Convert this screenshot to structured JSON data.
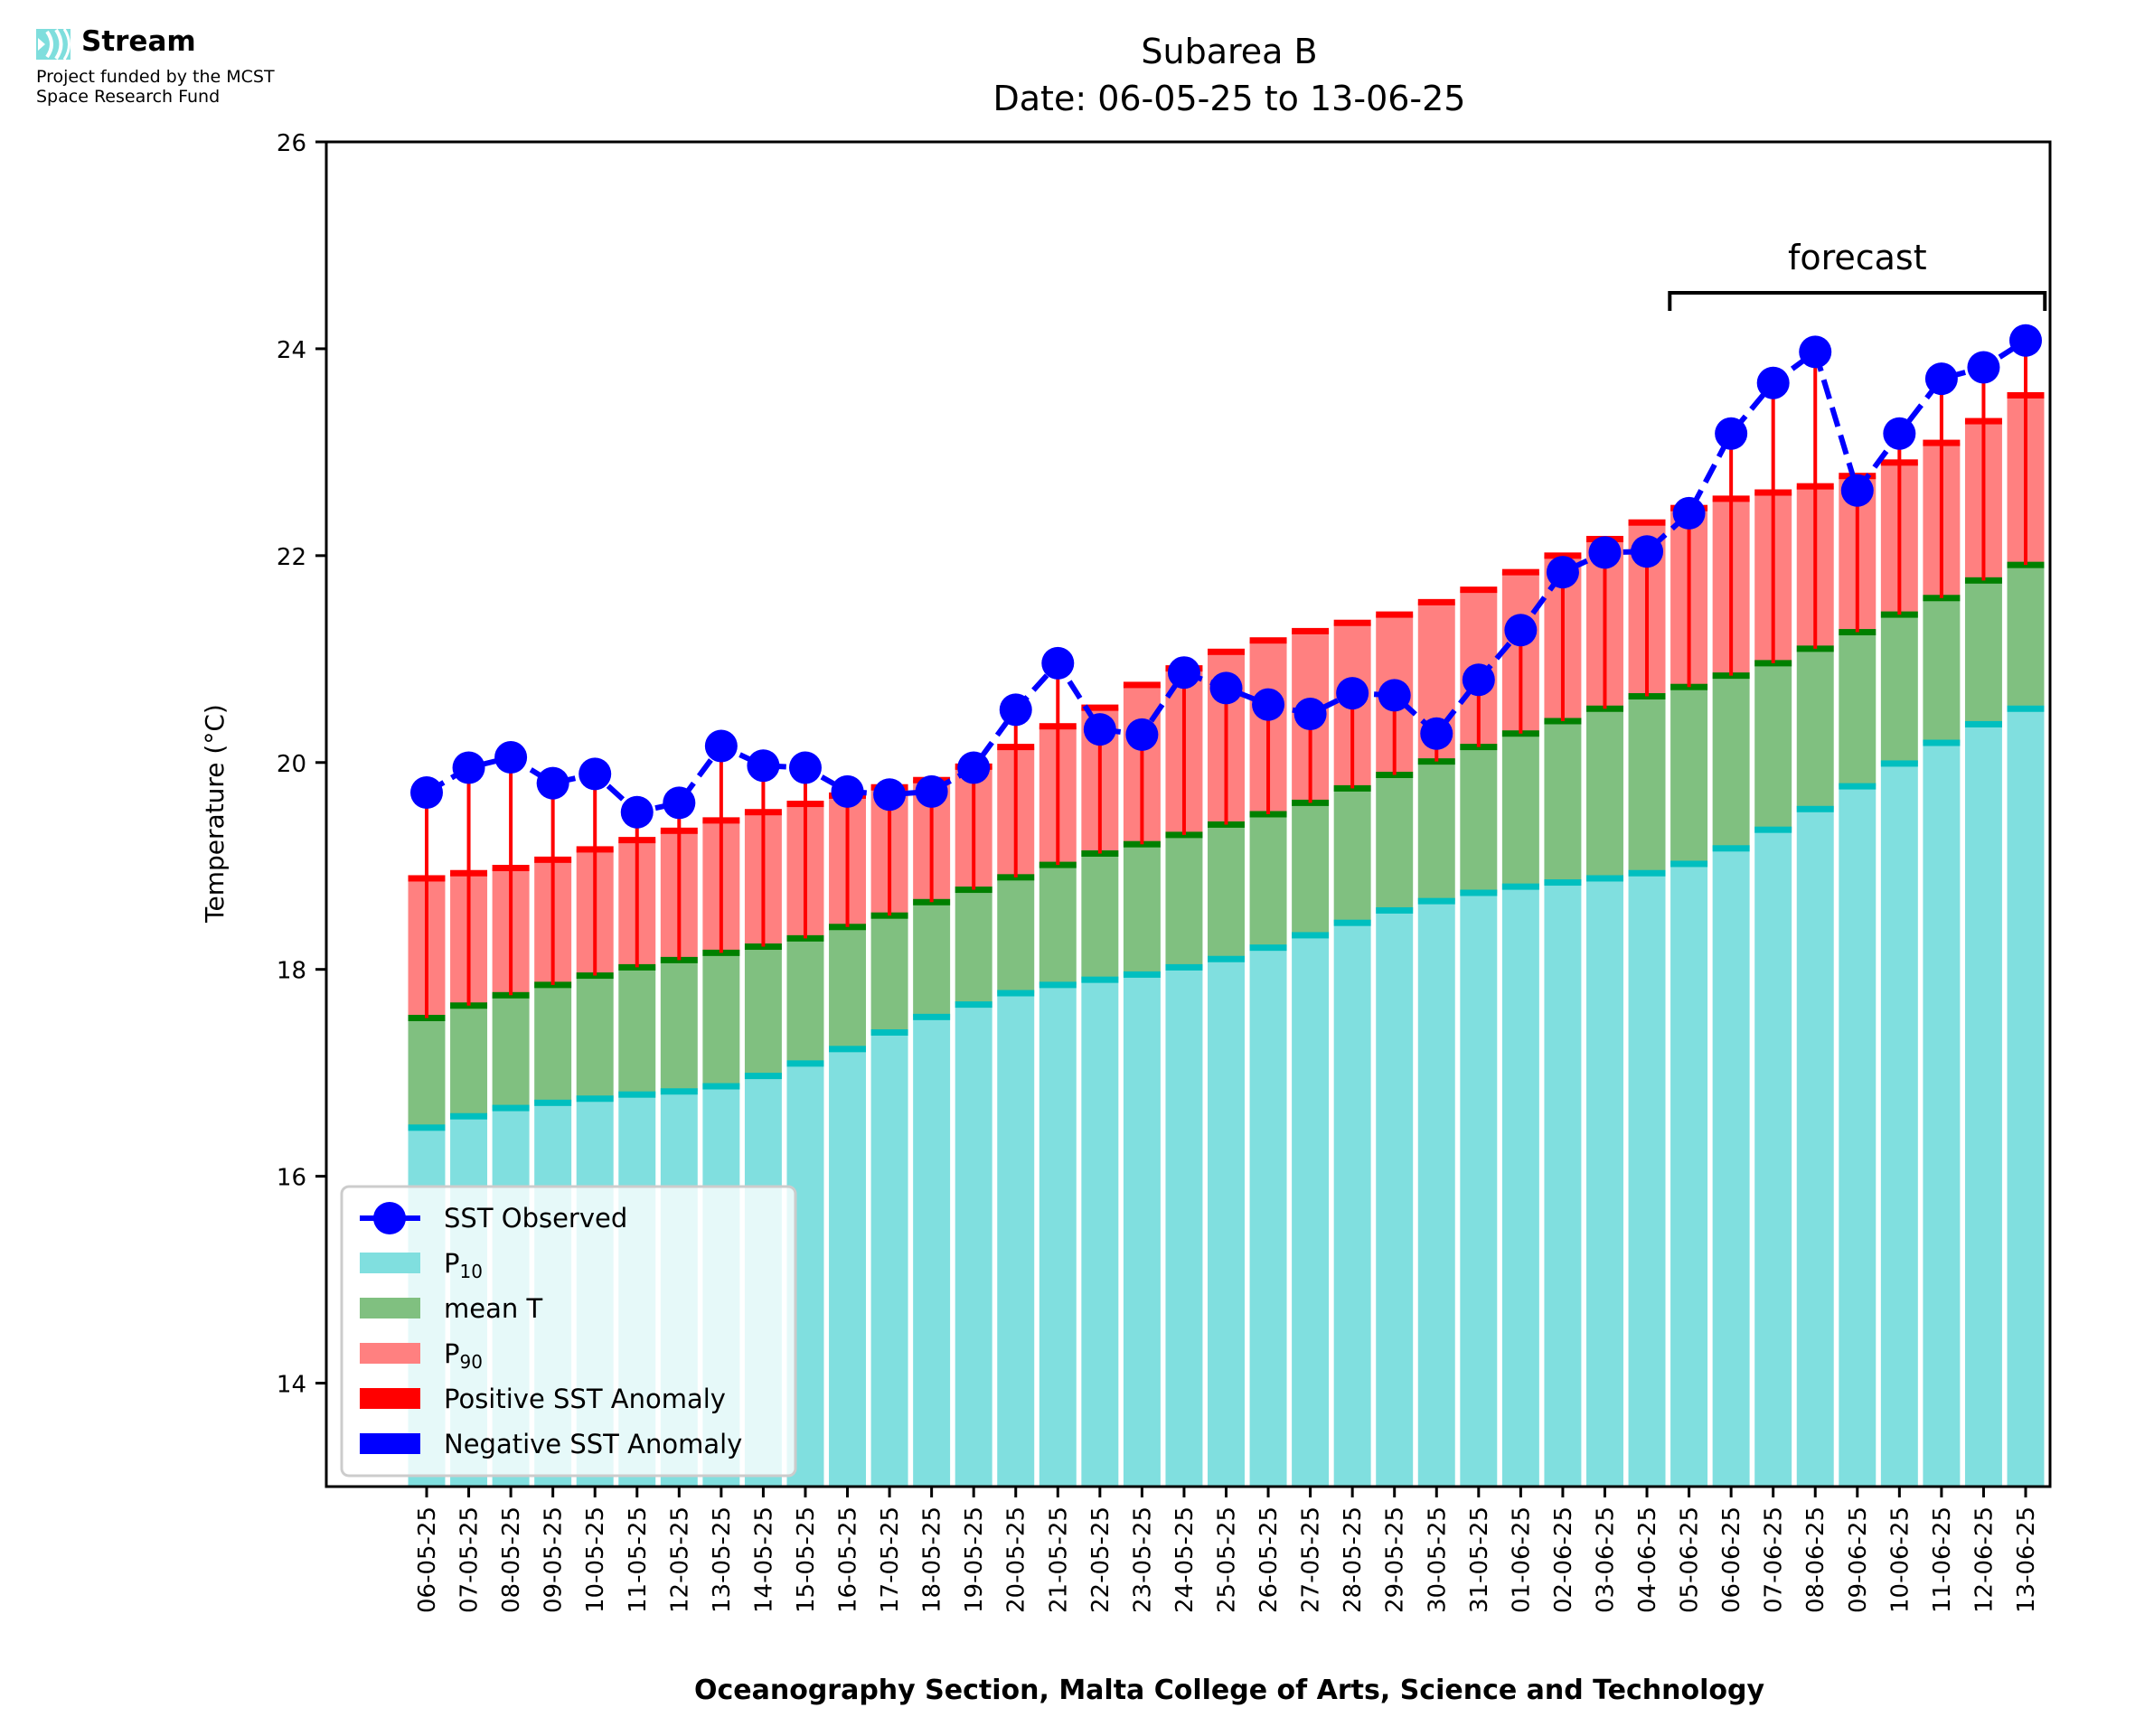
{
  "logo": {
    "name": "Stream",
    "fund_line1": "Project funded by the MCST",
    "fund_line2": "Space Research Fund",
    "icon": "stream-waves-icon",
    "icon_color": "#7fdedd"
  },
  "footer": "Oceanography Section, Malta College of Arts, Science and Technology",
  "colors": {
    "p10": "#80dfdf",
    "p10_edge": "#00bfbf",
    "mean": "#80c080",
    "mean_edge": "#008000",
    "p90": "#ff8080",
    "p90_edge": "#ff0000",
    "sst": "#0000ff",
    "pos_anom": "#ff0000",
    "neg_anom": "#0000ff"
  },
  "chart_data": {
    "type": "bar",
    "title": "Subarea B",
    "subtitle": "Date: 06-05-25 to 13-06-25",
    "xlabel": "Oceanography Section, Malta College of Arts, Science and Technology",
    "ylabel": "Temperature (°C)",
    "ylim": [
      13,
      26
    ],
    "yticks": [
      14,
      16,
      18,
      20,
      22,
      24,
      26
    ],
    "grid": false,
    "legend_position": "bottom-left",
    "legend": [
      {
        "label": "SST Observed",
        "kind": "line-marker"
      },
      {
        "label": "P",
        "sub": "10",
        "kind": "patch-p10"
      },
      {
        "label": "mean T",
        "kind": "patch-mean"
      },
      {
        "label": "P",
        "sub": "90",
        "kind": "patch-p90"
      },
      {
        "label": "Positive SST Anomaly",
        "kind": "patch-pos"
      },
      {
        "label": "Negative SST Anomaly",
        "kind": "patch-neg"
      }
    ],
    "annotation": {
      "text": "forecast",
      "from": "05-06-25",
      "to": "13-06-25"
    },
    "categories": [
      "06-05-25",
      "07-05-25",
      "08-05-25",
      "09-05-25",
      "10-05-25",
      "11-05-25",
      "12-05-25",
      "13-05-25",
      "14-05-25",
      "15-05-25",
      "16-05-25",
      "17-05-25",
      "18-05-25",
      "19-05-25",
      "20-05-25",
      "21-05-25",
      "22-05-25",
      "23-05-25",
      "24-05-25",
      "25-05-25",
      "26-05-25",
      "27-05-25",
      "28-05-25",
      "29-05-25",
      "30-05-25",
      "31-05-25",
      "01-06-25",
      "02-06-25",
      "03-06-25",
      "04-06-25",
      "05-06-25",
      "06-06-25",
      "07-06-25",
      "08-06-25",
      "09-06-25",
      "10-06-25",
      "11-06-25",
      "12-06-25",
      "13-06-25"
    ],
    "series": [
      {
        "name": "P10",
        "values": [
          16.47,
          16.58,
          16.66,
          16.71,
          16.75,
          16.79,
          16.82,
          16.87,
          16.97,
          17.09,
          17.23,
          17.39,
          17.54,
          17.66,
          17.77,
          17.85,
          17.9,
          17.95,
          18.02,
          18.1,
          18.21,
          18.33,
          18.45,
          18.57,
          18.66,
          18.74,
          18.8,
          18.84,
          18.88,
          18.93,
          19.02,
          19.17,
          19.35,
          19.55,
          19.77,
          19.99,
          20.19,
          20.37,
          20.52
        ]
      },
      {
        "name": "mean T",
        "values": [
          17.53,
          17.65,
          17.75,
          17.85,
          17.94,
          18.02,
          18.09,
          18.16,
          18.22,
          18.3,
          18.41,
          18.52,
          18.65,
          18.77,
          18.89,
          19.01,
          19.12,
          19.21,
          19.3,
          19.4,
          19.5,
          19.61,
          19.75,
          19.88,
          20.01,
          20.15,
          20.28,
          20.4,
          20.52,
          20.64,
          20.73,
          20.84,
          20.96,
          21.1,
          21.26,
          21.43,
          21.59,
          21.76,
          21.91
        ]
      },
      {
        "name": "P90",
        "values": [
          18.88,
          18.93,
          18.98,
          19.06,
          19.16,
          19.25,
          19.34,
          19.44,
          19.52,
          19.6,
          19.68,
          19.76,
          19.83,
          19.96,
          20.15,
          20.35,
          20.53,
          20.75,
          20.91,
          21.07,
          21.18,
          21.27,
          21.35,
          21.43,
          21.55,
          21.67,
          21.84,
          22.0,
          22.16,
          22.32,
          22.46,
          22.55,
          22.61,
          22.67,
          22.77,
          22.9,
          23.09,
          23.3,
          23.55
        ]
      },
      {
        "name": "SST Observed",
        "values": [
          19.71,
          19.95,
          20.05,
          19.8,
          19.89,
          19.52,
          19.61,
          20.16,
          19.97,
          19.95,
          19.72,
          19.69,
          19.72,
          19.95,
          20.51,
          20.96,
          20.32,
          20.27,
          20.87,
          20.72,
          20.56,
          20.47,
          20.67,
          20.65,
          20.28,
          20.8,
          21.28,
          21.84,
          22.03,
          22.04,
          22.41,
          23.18,
          23.67,
          23.97,
          22.63,
          23.18,
          23.71,
          23.82,
          24.08
        ]
      }
    ]
  }
}
